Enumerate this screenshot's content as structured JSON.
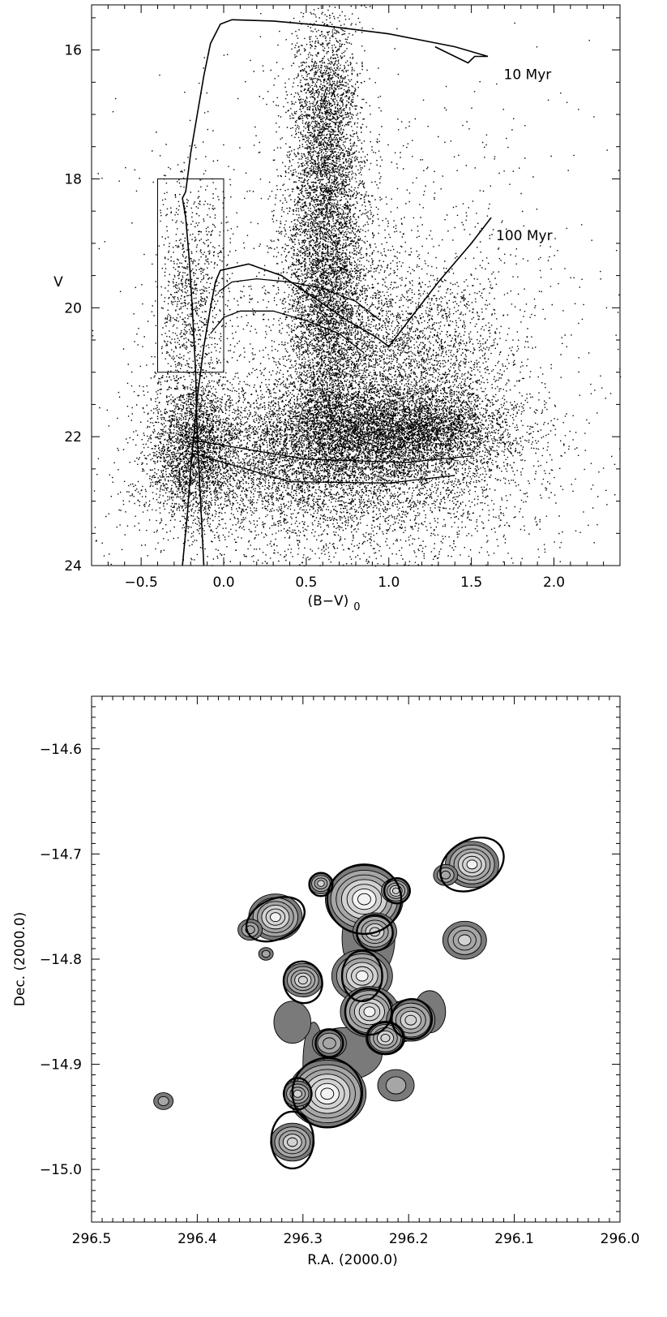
{
  "chart_data": [
    {
      "type": "scatter",
      "title": "",
      "xlabel": "(B−V)",
      "xlabel_subscript": "0",
      "ylabel": "V",
      "xlim": [
        -0.8,
        2.4
      ],
      "ylim": [
        24.0,
        15.3
      ],
      "y_inverted": true,
      "grid": false,
      "x_ticks": [
        {
          "value": -0.5,
          "label": "−0.5"
        },
        {
          "value": 0.0,
          "label": "0.0"
        },
        {
          "value": 0.5,
          "label": "0.5"
        },
        {
          "value": 1.0,
          "label": "1.0"
        },
        {
          "value": 1.5,
          "label": "1.5"
        },
        {
          "value": 2.0,
          "label": "2.0"
        }
      ],
      "y_ticks": [
        {
          "value": 16,
          "label": "16"
        },
        {
          "value": 18,
          "label": "18"
        },
        {
          "value": 20,
          "label": "20"
        },
        {
          "value": 22,
          "label": "22"
        },
        {
          "value": 24,
          "label": "24"
        }
      ],
      "annotations": [
        {
          "text": "10 Myr",
          "x": 1.84,
          "y": 16.45
        },
        {
          "text": "100 Myr",
          "x": 1.82,
          "y": 18.95
        }
      ],
      "selection_box": {
        "x0": -0.4,
        "x1": 0.0,
        "y0": 18.0,
        "y1": 21.0
      },
      "star_clumps": [
        {
          "x": 0.62,
          "y": 19.4,
          "sx": 0.12,
          "sy": 1.5,
          "n": 5200
        },
        {
          "x": 0.62,
          "y": 17.0,
          "sx": 0.1,
          "sy": 0.8,
          "n": 1600
        },
        {
          "x": 1.15,
          "y": 21.9,
          "sx": 0.32,
          "sy": 0.35,
          "n": 4200
        },
        {
          "x": 0.6,
          "y": 22.0,
          "sx": 0.35,
          "sy": 0.5,
          "n": 3400
        },
        {
          "x": -0.18,
          "y": 22.2,
          "sx": 0.14,
          "sy": 0.55,
          "n": 2600
        },
        {
          "x": -0.2,
          "y": 19.8,
          "sx": 0.1,
          "sy": 1.0,
          "n": 900
        },
        {
          "x": 0.9,
          "y": 20.6,
          "sx": 0.3,
          "sy": 0.8,
          "n": 1800
        },
        {
          "x": 1.3,
          "y": 20.8,
          "sx": 0.25,
          "sy": 0.6,
          "n": 900
        },
        {
          "x": 0.7,
          "y": 22.8,
          "sx": 0.6,
          "sy": 0.6,
          "n": 3000
        },
        {
          "x": 0.8,
          "y": 20.5,
          "sx": 0.7,
          "sy": 2.0,
          "n": 2200
        }
      ],
      "series": [
        {
          "name": "10 Myr",
          "points": [
            [
              1.28,
              15.95
            ],
            [
              1.48,
              16.2
            ],
            [
              1.5,
              16.15
            ],
            [
              1.52,
              16.1
            ],
            [
              1.6,
              16.1
            ],
            [
              1.4,
              15.95
            ],
            [
              1.0,
              15.75
            ],
            [
              0.6,
              15.62
            ],
            [
              0.3,
              15.55
            ],
            [
              0.05,
              15.53
            ],
            [
              -0.02,
              15.6
            ],
            [
              -0.08,
              15.9
            ],
            [
              -0.12,
              16.4
            ],
            [
              -0.16,
              17.0
            ],
            [
              -0.2,
              17.6
            ],
            [
              -0.22,
              18.0
            ],
            [
              -0.23,
              18.2
            ],
            [
              -0.25,
              18.3
            ],
            [
              -0.23,
              18.6
            ],
            [
              -0.21,
              19.2
            ],
            [
              -0.19,
              20.0
            ],
            [
              -0.17,
              21.0
            ],
            [
              -0.16,
              22.0
            ],
            [
              -0.14,
              23.0
            ],
            [
              -0.12,
              24.0
            ]
          ]
        },
        {
          "name": "100 Myr",
          "points": [
            [
              1.62,
              18.6
            ],
            [
              1.5,
              19.0
            ],
            [
              1.3,
              19.6
            ],
            [
              1.12,
              20.2
            ],
            [
              1.0,
              20.6
            ],
            [
              0.92,
              20.45
            ],
            [
              0.75,
              20.2
            ],
            [
              0.55,
              19.85
            ],
            [
              0.35,
              19.5
            ],
            [
              0.15,
              19.32
            ],
            [
              -0.02,
              19.42
            ],
            [
              -0.05,
              19.6
            ],
            [
              -0.08,
              20.0
            ],
            [
              -0.12,
              20.6
            ],
            [
              -0.16,
              21.4
            ],
            [
              -0.2,
              22.5
            ],
            [
              -0.22,
              23.2
            ],
            [
              -0.25,
              24.0
            ]
          ]
        },
        {
          "name": "",
          "points": [
            [
              0.95,
              20.2
            ],
            [
              0.8,
              19.9
            ],
            [
              0.6,
              19.7
            ],
            [
              0.4,
              19.6
            ],
            [
              0.2,
              19.55
            ],
            [
              0.05,
              19.6
            ],
            [
              -0.03,
              19.75
            ]
          ]
        },
        {
          "name": "",
          "points": [
            [
              0.85,
              20.7
            ],
            [
              0.7,
              20.4
            ],
            [
              0.5,
              20.2
            ],
            [
              0.3,
              20.05
            ],
            [
              0.1,
              20.05
            ],
            [
              0.0,
              20.15
            ],
            [
              -0.08,
              20.4
            ]
          ]
        },
        {
          "name": "",
          "points": [
            [
              -0.2,
              22.25
            ],
            [
              0.4,
              22.7
            ],
            [
              1.0,
              22.72
            ],
            [
              1.4,
              22.6
            ]
          ]
        },
        {
          "name": "",
          "points": [
            [
              -0.2,
              22.05
            ],
            [
              0.5,
              22.35
            ],
            [
              1.1,
              22.4
            ],
            [
              1.5,
              22.3
            ]
          ]
        }
      ]
    },
    {
      "type": "contour",
      "title": "",
      "xlabel": "R.A. (2000.0)",
      "ylabel": "Dec. (2000.0)",
      "xlim": [
        296.5,
        296.0
      ],
      "ylim": [
        -15.05,
        -14.55
      ],
      "x_inverted": true,
      "grid": false,
      "x_ticks": [
        {
          "value": 296.5,
          "label": "296.5"
        },
        {
          "value": 296.4,
          "label": "296.4"
        },
        {
          "value": 296.3,
          "label": "296.3"
        },
        {
          "value": 296.2,
          "label": "296.2"
        },
        {
          "value": 296.1,
          "label": "296.1"
        },
        {
          "value": 296.0,
          "label": "296.0"
        }
      ],
      "y_ticks": [
        {
          "value": -14.6,
          "label": "−14.6"
        },
        {
          "value": -14.7,
          "label": "−14.7"
        },
        {
          "value": -14.8,
          "label": "−14.8"
        },
        {
          "value": -14.9,
          "label": "−14.9"
        },
        {
          "value": -15.0,
          "label": "−15.0"
        }
      ],
      "density_peaks": [
        {
          "ra": 296.242,
          "dec": -14.743,
          "strength": 6,
          "size": 0.032
        },
        {
          "ra": 296.212,
          "dec": -14.735,
          "strength": 4,
          "size": 0.012
        },
        {
          "ra": 296.232,
          "dec": -14.774,
          "strength": 4,
          "size": 0.018
        },
        {
          "ra": 296.283,
          "dec": -14.728,
          "strength": 3,
          "size": 0.01
        },
        {
          "ra": 296.14,
          "dec": -14.71,
          "strength": 5,
          "size": 0.022
        },
        {
          "ra": 296.165,
          "dec": -14.72,
          "strength": 2,
          "size": 0.01
        },
        {
          "ra": 296.326,
          "dec": -14.76,
          "strength": 5,
          "size": 0.022
        },
        {
          "ra": 296.35,
          "dec": -14.772,
          "strength": 2,
          "size": 0.01
        },
        {
          "ra": 296.147,
          "dec": -14.782,
          "strength": 3,
          "size": 0.018
        },
        {
          "ra": 296.3,
          "dec": -14.82,
          "strength": 4,
          "size": 0.016
        },
        {
          "ra": 296.244,
          "dec": -14.816,
          "strength": 5,
          "size": 0.025
        },
        {
          "ra": 296.237,
          "dec": -14.85,
          "strength": 5,
          "size": 0.024
        },
        {
          "ra": 296.198,
          "dec": -14.858,
          "strength": 4,
          "size": 0.02
        },
        {
          "ra": 296.222,
          "dec": -14.875,
          "strength": 4,
          "size": 0.016
        },
        {
          "ra": 296.275,
          "dec": -14.88,
          "strength": 2,
          "size": 0.014
        },
        {
          "ra": 296.277,
          "dec": -14.928,
          "strength": 6,
          "size": 0.032
        },
        {
          "ra": 296.305,
          "dec": -14.928,
          "strength": 3,
          "size": 0.012
        },
        {
          "ra": 296.31,
          "dec": -14.974,
          "strength": 4,
          "size": 0.018
        },
        {
          "ra": 296.432,
          "dec": -14.935,
          "strength": 1,
          "size": 0.008
        },
        {
          "ra": 296.335,
          "dec": -14.795,
          "strength": 1,
          "size": 0.006
        },
        {
          "ra": 296.212,
          "dec": -14.92,
          "strength": 1,
          "size": 0.015
        }
      ],
      "bridge_regions": [
        {
          "ra": 296.238,
          "dec": -14.78,
          "w": 0.05,
          "h": 0.08
        },
        {
          "ra": 296.215,
          "dec": -14.86,
          "w": 0.06,
          "h": 0.04
        },
        {
          "ra": 296.26,
          "dec": -14.89,
          "w": 0.07,
          "h": 0.05
        },
        {
          "ra": 296.29,
          "dec": -14.9,
          "w": 0.02,
          "h": 0.08
        },
        {
          "ra": 296.31,
          "dec": -14.86,
          "w": 0.035,
          "h": 0.04
        },
        {
          "ra": 296.18,
          "dec": -14.85,
          "w": 0.03,
          "h": 0.04
        }
      ],
      "circled_groups": [
        {
          "ra": 296.14,
          "dec": -14.71,
          "rx": 0.032,
          "ry": 0.023,
          "angle": -30
        },
        {
          "ra": 296.326,
          "dec": -14.762,
          "rx": 0.029,
          "ry": 0.019,
          "angle": -25
        },
        {
          "ra": 296.283,
          "dec": -14.729,
          "rx": 0.011,
          "ry": 0.011,
          "angle": 0
        },
        {
          "ra": 296.242,
          "dec": -14.743,
          "rx": 0.035,
          "ry": 0.033,
          "angle": 0
        },
        {
          "ra": 296.211,
          "dec": -14.735,
          "rx": 0.012,
          "ry": 0.012,
          "angle": 0
        },
        {
          "ra": 296.232,
          "dec": -14.775,
          "rx": 0.017,
          "ry": 0.017,
          "angle": 0
        },
        {
          "ra": 296.3,
          "dec": -14.822,
          "rx": 0.018,
          "ry": 0.02,
          "angle": -20
        },
        {
          "ra": 296.244,
          "dec": -14.816,
          "rx": 0.019,
          "ry": 0.024,
          "angle": 0
        },
        {
          "ra": 296.238,
          "dec": -14.85,
          "rx": 0.022,
          "ry": 0.022,
          "angle": 0
        },
        {
          "ra": 296.197,
          "dec": -14.857,
          "rx": 0.019,
          "ry": 0.019,
          "angle": 0
        },
        {
          "ra": 296.222,
          "dec": -14.875,
          "rx": 0.017,
          "ry": 0.015,
          "angle": 0
        },
        {
          "ra": 296.275,
          "dec": -14.88,
          "rx": 0.013,
          "ry": 0.013,
          "angle": 0
        },
        {
          "ra": 296.277,
          "dec": -14.927,
          "rx": 0.033,
          "ry": 0.033,
          "angle": 0
        },
        {
          "ra": 296.305,
          "dec": -14.928,
          "rx": 0.013,
          "ry": 0.015,
          "angle": 0
        },
        {
          "ra": 296.31,
          "dec": -14.972,
          "rx": 0.02,
          "ry": 0.027,
          "angle": 0
        }
      ],
      "contour_levels": [
        0.12,
        0.28,
        0.5,
        0.8,
        1.2,
        1.7,
        2.4,
        3.2,
        4.2
      ],
      "colors": {
        "fill_dark": "#7a7a7a",
        "fill_mid": "#a6a6a6",
        "fill_light": "#d2d2d2",
        "fill_lightest": "#f2f2f2",
        "line": "#000000"
      }
    }
  ]
}
